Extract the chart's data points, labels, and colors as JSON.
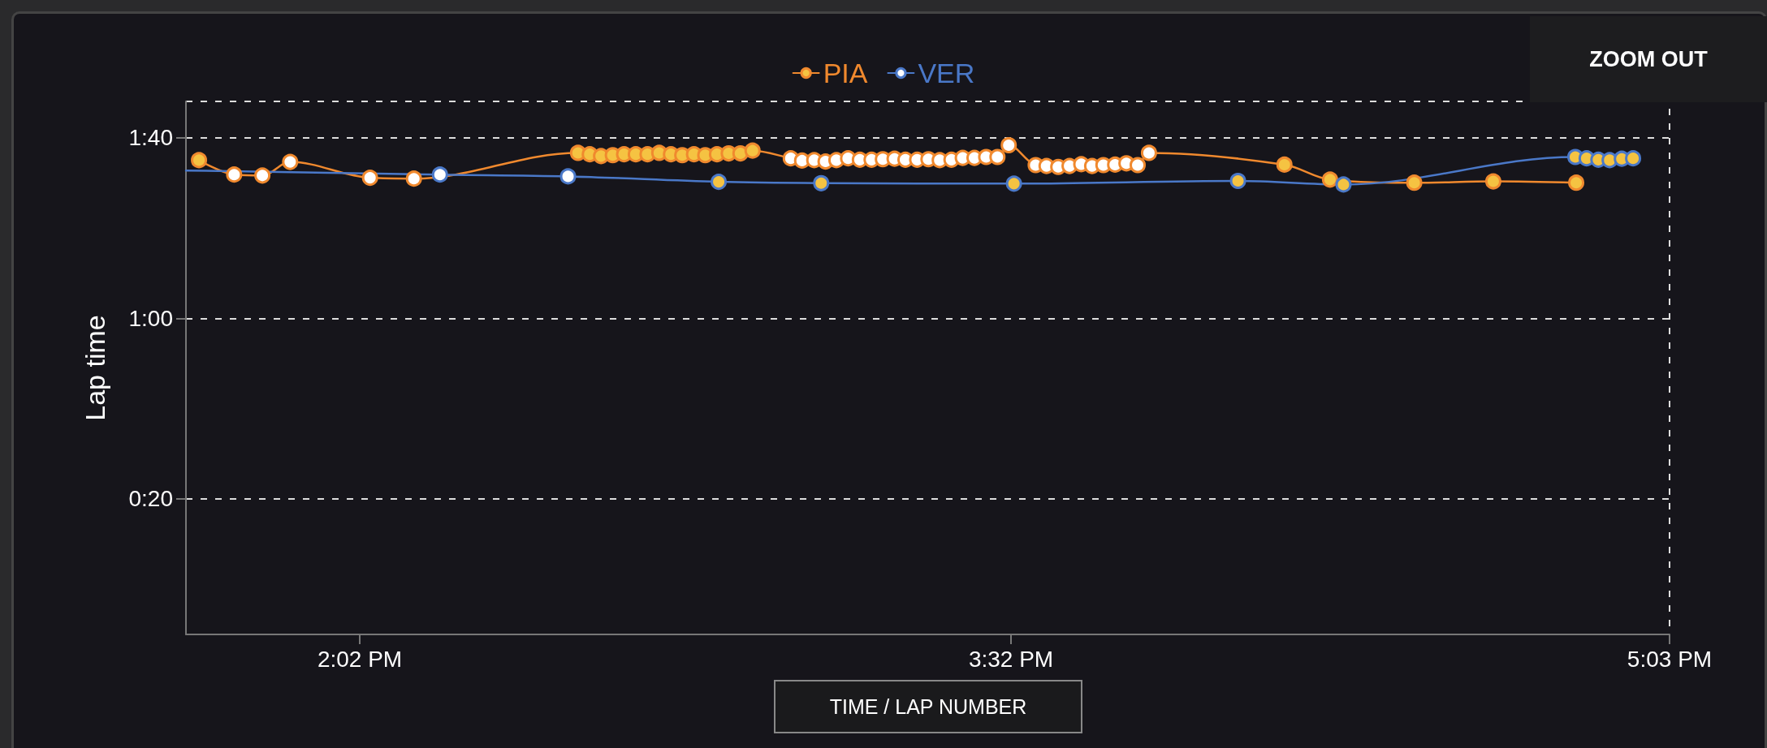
{
  "chart_data": {
    "type": "line",
    "ylabel": "Lap time",
    "annotations": [
      "ZOOM OUT",
      "TIME / LAP NUMBER"
    ],
    "xlim": [
      13.633,
      17.05
    ],
    "xticks": [
      {
        "value": 14.0333,
        "label": "2:02 PM"
      },
      {
        "value": 15.5333,
        "label": "3:32 PM"
      },
      {
        "value": 17.05,
        "label": "5:03 PM"
      }
    ],
    "ylim": [
      -10,
      108
    ],
    "yticks": [
      {
        "value": 20,
        "label": "0:20"
      },
      {
        "value": 60,
        "label": "1:00"
      },
      {
        "value": 100,
        "label": "1:40"
      }
    ],
    "grid": "y",
    "legend": "top",
    "marker": "circle",
    "line_style": "solid",
    "series": [
      {
        "name": "PIA",
        "color": "#f0892e",
        "x": [
          13.663,
          13.744,
          13.809,
          13.873,
          14.057,
          14.158,
          14.536,
          14.563,
          14.589,
          14.616,
          14.642,
          14.669,
          14.696,
          14.723,
          14.75,
          14.776,
          14.803,
          14.829,
          14.856,
          14.883,
          14.91,
          14.938,
          15.026,
          15.052,
          15.08,
          15.106,
          15.131,
          15.158,
          15.185,
          15.212,
          15.238,
          15.265,
          15.29,
          15.317,
          15.343,
          15.369,
          15.396,
          15.422,
          15.449,
          15.476,
          15.502,
          15.528,
          15.59,
          15.615,
          15.642,
          15.668,
          15.695,
          15.72,
          15.746,
          15.773,
          15.799,
          15.825,
          15.851,
          16.163,
          16.268,
          16.462,
          16.644,
          16.835
        ],
        "values": [
          95.0,
          91.8,
          91.6,
          94.6,
          91.1,
          90.9,
          96.6,
          96.3,
          95.9,
          96.1,
          96.3,
          96.3,
          96.3,
          96.6,
          96.3,
          96.1,
          96.3,
          96.1,
          96.3,
          96.5,
          96.5,
          97.1,
          95.4,
          94.9,
          95.0,
          94.7,
          95.0,
          95.4,
          95.1,
          95.1,
          95.2,
          95.3,
          95.1,
          95.1,
          95.2,
          95.0,
          95.1,
          95.5,
          95.5,
          95.7,
          95.7,
          98.3,
          93.9,
          93.7,
          93.5,
          93.7,
          94.1,
          93.7,
          93.9,
          94.0,
          94.3,
          93.9,
          96.6,
          94.0,
          90.7,
          90.0,
          90.3,
          90.0
        ],
        "colors": [
          "#f5c342",
          "#ffffff",
          "#ffffff",
          "#ffffff",
          "#ffffff",
          "#ffffff",
          "#f5c342",
          "#f5c342",
          "#f5c342",
          "#f5c342",
          "#f5c342",
          "#f5c342",
          "#f5c342",
          "#f5c342",
          "#f5c342",
          "#f5c342",
          "#f5c342",
          "#f5c342",
          "#f5c342",
          "#f5c342",
          "#f5c342",
          "#f5c342",
          "#ffffff",
          "#ffffff",
          "#ffffff",
          "#ffffff",
          "#ffffff",
          "#ffffff",
          "#ffffff",
          "#ffffff",
          "#ffffff",
          "#ffffff",
          "#ffffff",
          "#ffffff",
          "#ffffff",
          "#ffffff",
          "#ffffff",
          "#ffffff",
          "#ffffff",
          "#ffffff",
          "#ffffff",
          "#ffffff",
          "#ffffff",
          "#ffffff",
          "#ffffff",
          "#ffffff",
          "#ffffff",
          "#ffffff",
          "#ffffff",
          "#ffffff",
          "#ffffff",
          "#ffffff",
          "#ffffff",
          "#f5c342",
          "#f5c342",
          "#f5c342",
          "#f5c342",
          "#f5c342"
        ]
      },
      {
        "name": "VER",
        "color": "#4a78c8",
        "x": [
          13.633,
          14.218,
          14.513,
          14.86,
          15.096,
          15.54,
          16.056,
          16.299,
          16.833,
          16.859,
          16.886,
          16.912,
          16.94,
          16.966
        ],
        "values": [
          92.7,
          91.8,
          91.4,
          90.2,
          89.9,
          89.8,
          90.4,
          89.6,
          95.7,
          95.4,
          95.1,
          95.0,
          95.3,
          95.4
        ],
        "colors": [
          null,
          "#ffffff",
          "#ffffff",
          "#f5c342",
          "#f5c342",
          "#f5c342",
          "#f5c342",
          "#f5c342",
          "#f5c342",
          "#f5c342",
          "#f5c342",
          "#f5c342",
          "#f5c342",
          "#f5c342"
        ]
      }
    ]
  }
}
